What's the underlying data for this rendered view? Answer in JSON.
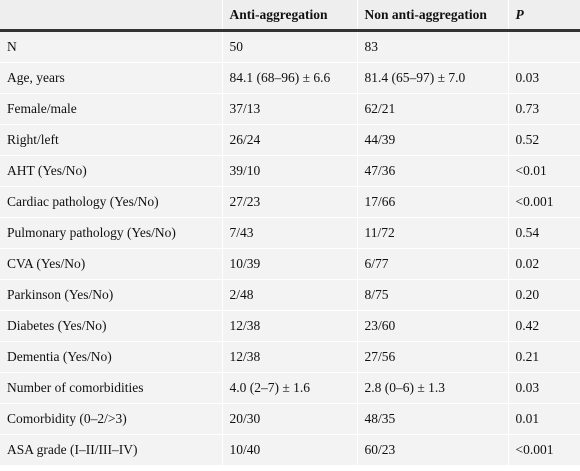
{
  "table": {
    "header": [
      "Anti-aggregation",
      "Non anti-aggregation",
      "P"
    ],
    "rows": [
      [
        "N",
        "50",
        "83"
      ],
      [
        "Age, years",
        "84.1 (68–96) ± 6.6",
        "81.4 (65–97) ± 7.0",
        "0.03"
      ],
      [
        "Female/male",
        "37/13",
        "62/21",
        "0.73"
      ],
      [
        "Right/left",
        "26/24",
        "44/39",
        "0.52"
      ],
      [
        "AHT (Yes/No)",
        "39/10",
        "47/36",
        "<0.01"
      ],
      [
        "Cardiac pathology (Yes/No)",
        "27/23",
        "17/66",
        "<0.001"
      ],
      [
        "Pulmonary pathology (Yes/No)",
        "7/43",
        "11/72",
        "0.54"
      ],
      [
        "CVA (Yes/No)",
        "10/39",
        "6/77",
        "0.02"
      ],
      [
        "Parkinson (Yes/No)",
        "2/48",
        "8/75",
        "0.20"
      ],
      [
        "Diabetes (Yes/No)",
        "12/38",
        "23/60",
        "0.42"
      ],
      [
        "Dementia (Yes/No)",
        "12/38",
        "27/56",
        "0.21"
      ],
      [
        "Number of comorbidities",
        "4.0 (2–7) ± 1.6",
        "2.8 (0–6) ± 1.3",
        "0.03"
      ],
      [
        "Comorbidity (0–2/>3)",
        "20/30",
        "48/35",
        "0.01"
      ],
      [
        "ASA grade (I–II/III–IV)",
        "10/40",
        "60/23",
        "<0.001"
      ]
    ]
  }
}
